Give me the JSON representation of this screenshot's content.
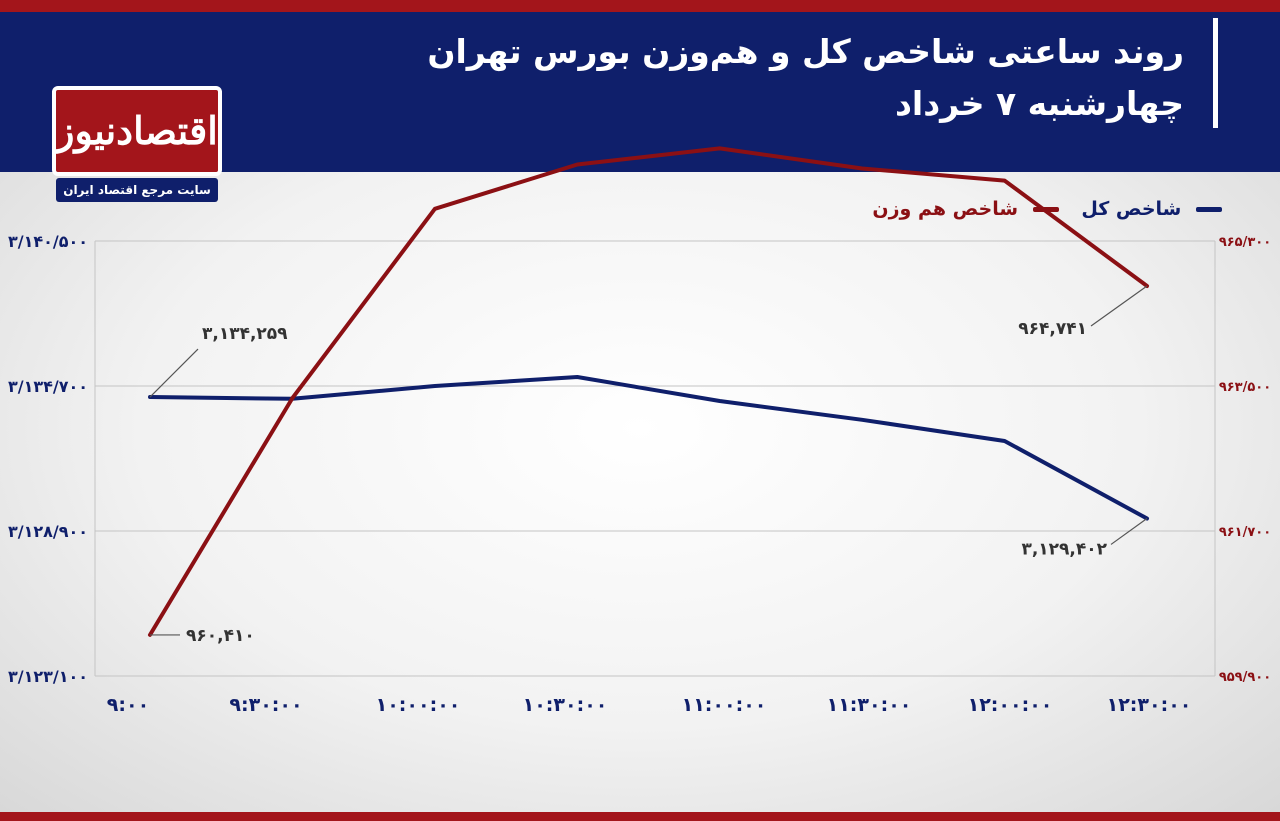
{
  "header": {
    "title_line1": "روند ساعتی شاخص کل و هم‌وزن بورس تهران",
    "title_line2": "چهارشنبه ۷ خرداد"
  },
  "logo": {
    "name": "اقتصادنیوز",
    "tagline": "سایت مرجع اقتصاد ایران"
  },
  "colors": {
    "header_bg": "#0f1f6b",
    "accent_red": "#a3151b",
    "series_total": "#0f1f6b",
    "series_equal": "#8b1014"
  },
  "chart_data": {
    "type": "line",
    "title": "روند ساعتی شاخص کل و هم‌وزن بورس تهران",
    "subtitle": "چهارشنبه ۷ خرداد",
    "x": [
      "۹:۰۰",
      "۹:۳۰:۰۰",
      "۱۰:۰۰:۰۰",
      "۱۰:۳۰:۰۰",
      "۱۱:۰۰:۰۰",
      "۱۱:۳۰:۰۰",
      "۱۲:۰۰:۰۰",
      "۱۲:۳۰:۰۰"
    ],
    "legend_position": "top-right",
    "grid": true,
    "series": [
      {
        "name": "شاخص کل",
        "axis": "left",
        "values": [
          3134259,
          3134190,
          3134700,
          3135060,
          3134100,
          3133350,
          3132500,
          3129402
        ]
      },
      {
        "name": "شاخص هم وزن",
        "axis": "right",
        "values": [
          960410,
          963350,
          965700,
          966250,
          966450,
          966200,
          966050,
          964741
        ]
      }
    ],
    "y_left": {
      "range": [
        3123100,
        3140500
      ],
      "ticks": [
        3123100,
        3128900,
        3134700,
        3140500
      ],
      "tick_labels": [
        "۳/۱۲۳/۱۰۰",
        "۳/۱۲۸/۹۰۰",
        "۳/۱۳۴/۷۰۰",
        "۳/۱۴۰/۵۰۰"
      ]
    },
    "y_right": {
      "range": [
        959900,
        965300
      ],
      "ticks": [
        959900,
        961700,
        963500,
        965300
      ],
      "tick_labels": [
        "۹۵۹/۹۰۰",
        "۹۶۱/۷۰۰",
        "۹۶۳/۵۰۰",
        "۹۶۵/۳۰۰"
      ]
    },
    "annotations": [
      {
        "series": 0,
        "point": 0,
        "text": "۳,۱۳۴,۲۵۹"
      },
      {
        "series": 0,
        "point": 7,
        "text": "۳,۱۲۹,۴۰۲"
      },
      {
        "series": 1,
        "point": 0,
        "text": "۹۶۰,۴۱۰"
      },
      {
        "series": 1,
        "point": 7,
        "text": "۹۶۴,۷۴۱"
      }
    ]
  }
}
